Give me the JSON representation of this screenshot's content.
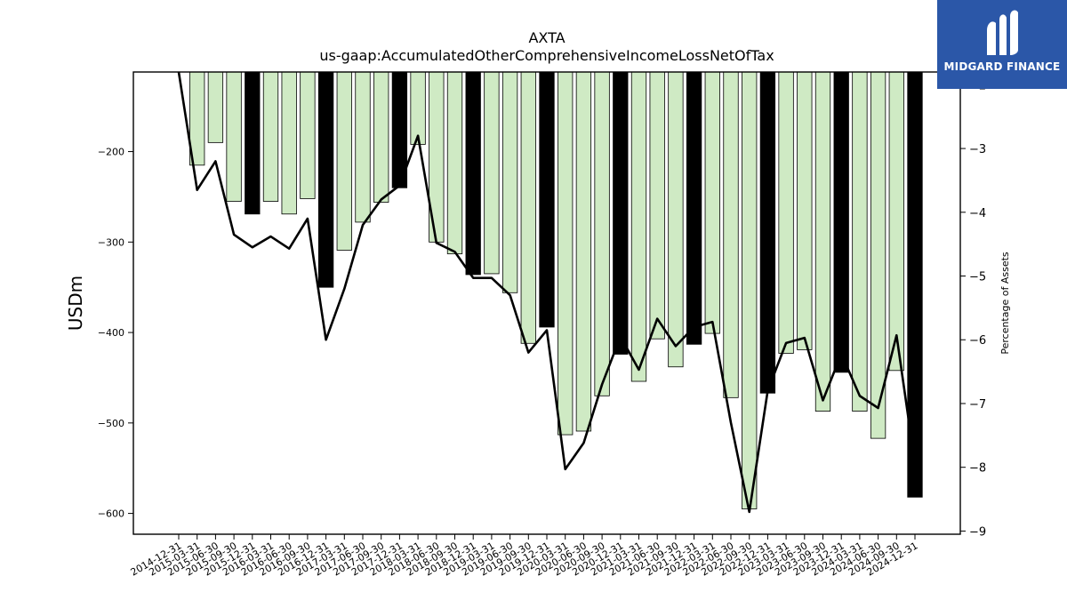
{
  "chart_data": {
    "type": "bar",
    "title": "AXTA",
    "subtitle": "us-gaap:AccumulatedOtherComprehensiveIncomeLossNetOfTax",
    "ylabel": "USDm",
    "y2label": "Percentage of Assets",
    "ylim": [
      -623,
      -112
    ],
    "y2lim": [
      -9.05,
      -1.8
    ],
    "yticks": [
      -200,
      -300,
      -400,
      -500,
      -600
    ],
    "y2ticks": [
      -2,
      -3,
      -4,
      -5,
      -6,
      -7,
      -8,
      -9
    ],
    "categories": [
      "2014-12-31",
      "2015-03-31",
      "2015-06-30",
      "2015-09-30",
      "2015-12-31",
      "2016-03-31",
      "2016-06-30",
      "2016-09-30",
      "2016-12-31",
      "2017-03-31",
      "2017-06-30",
      "2017-09-30",
      "2017-12-31",
      "2018-03-31",
      "2018-06-30",
      "2018-09-30",
      "2018-12-31",
      "2019-03-31",
      "2019-06-30",
      "2019-09-30",
      "2019-12-31",
      "2020-03-31",
      "2020-06-30",
      "2020-09-30",
      "2020-12-31",
      "2021-03-31",
      "2021-06-30",
      "2021-09-30",
      "2021-12-31",
      "2022-03-31",
      "2022-06-30",
      "2022-09-30",
      "2022-12-31",
      "2023-03-31",
      "2023-06-30",
      "2023-09-30",
      "2023-12-31",
      "2024-03-31",
      "2024-06-30",
      "2024-09-30",
      "2024-12-31"
    ],
    "series": [
      {
        "type": "bar",
        "values": [
          -112,
          -215,
          -190,
          -255,
          -269,
          -255,
          -269,
          -252,
          -350,
          -309,
          -278,
          -256,
          -240,
          -192,
          -300,
          -313,
          -336,
          -335,
          -356,
          -412,
          -394,
          -513,
          -509,
          -470,
          -424,
          -454,
          -407,
          -438,
          -413,
          -401,
          -472,
          -595,
          -467,
          -423,
          -419,
          -487,
          -444,
          -487,
          -517,
          -442,
          -582
        ],
        "highlight": [
          false,
          false,
          false,
          false,
          true,
          false,
          false,
          false,
          true,
          false,
          false,
          false,
          true,
          false,
          false,
          false,
          true,
          false,
          false,
          false,
          true,
          false,
          false,
          false,
          true,
          false,
          false,
          false,
          true,
          false,
          false,
          false,
          true,
          false,
          false,
          false,
          true,
          false,
          false,
          false,
          true
        ],
        "color": "#cfeac4",
        "highlight_color": "#000000"
      },
      {
        "type": "line",
        "axis": "right",
        "values": [
          -1.8,
          -3.65,
          -3.2,
          -4.35,
          -4.55,
          -4.38,
          -4.57,
          -4.1,
          -6.0,
          -5.2,
          -4.2,
          -3.8,
          -3.58,
          -2.8,
          -4.48,
          -4.62,
          -5.03,
          -5.03,
          -5.3,
          -6.2,
          -5.85,
          -8.03,
          -7.62,
          -6.7,
          -5.95,
          -6.47,
          -5.67,
          -6.1,
          -5.8,
          -5.72,
          -7.3,
          -8.7,
          -6.8,
          -6.05,
          -5.97,
          -6.95,
          -6.22,
          -6.88,
          -7.07,
          -5.93,
          -7.95
        ],
        "color": "#000000"
      }
    ],
    "grid": false
  },
  "logo": {
    "text": "MIDGARD FINANCE",
    "color": "#2b57a8"
  }
}
